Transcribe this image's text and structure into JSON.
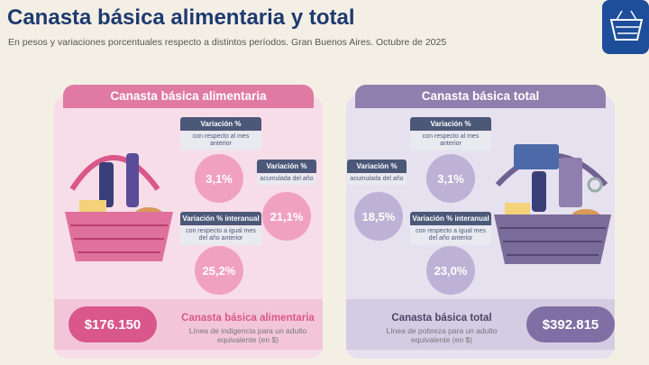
{
  "header": {
    "title": "Canasta básica alimentaria y total",
    "subtitle": "En pesos y variaciones porcentuales respecto a distintos períodos. Gran Buenos Aires. Octubre de 2025"
  },
  "panels": [
    {
      "title": "Canasta básica alimentaria",
      "indicators": [
        {
          "label": "Variación %",
          "detail": "con respecto al mes anterior",
          "value": "3,1%"
        },
        {
          "label": "Variación %",
          "detail": "acumulada del año",
          "value": "21,1%"
        },
        {
          "label": "Variación % interanual",
          "detail": "con respecto a igual mes del año anterior",
          "value": "25,2%"
        }
      ],
      "amount": "$176.150",
      "name": "Canasta básica alimentaria",
      "description": "Línea de indigencia para un adulto equivalente (en $)"
    },
    {
      "title": "Canasta básica total",
      "indicators": [
        {
          "label": "Variación %",
          "detail": "con respecto al mes anterior",
          "value": "3,1%"
        },
        {
          "label": "Variación %",
          "detail": "acumulada del año",
          "value": "18,5%"
        },
        {
          "label": "Variación % interanual",
          "detail": "con respecto a igual mes del año anterior",
          "value": "23,0%"
        }
      ],
      "amount": "$392.815",
      "name": "Canasta básica total",
      "description": "Línea de pobreza para un adulto equivalente (en $)"
    }
  ]
}
